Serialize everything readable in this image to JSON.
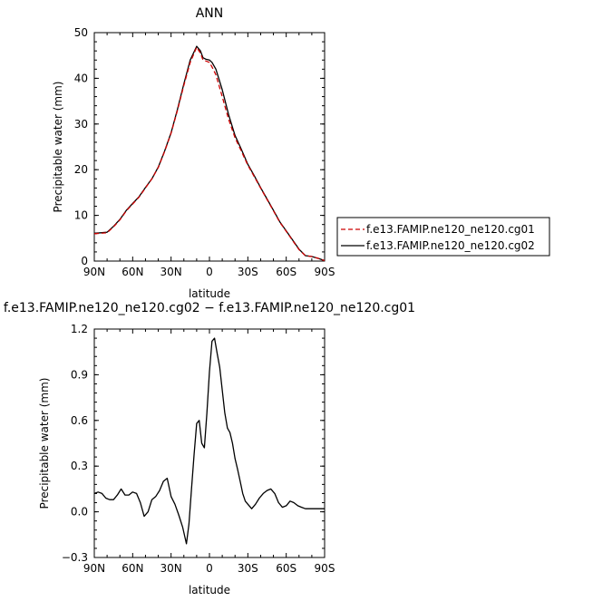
{
  "chart_data": [
    {
      "type": "line",
      "title": "ANN",
      "xlabel": "latitude",
      "ylabel": "Precipitable water (mm)",
      "xlim": [
        90,
        -90
      ],
      "ylim": [
        0,
        50
      ],
      "x_ticks": [
        90,
        60,
        30,
        0,
        -30,
        -60,
        -90
      ],
      "x_tick_labels": [
        "90N",
        "60N",
        "30N",
        "0",
        "30S",
        "60S",
        "90S"
      ],
      "y_ticks": [
        0,
        10,
        20,
        30,
        40,
        50
      ],
      "y_tick_labels": [
        "0",
        "10",
        "20",
        "30",
        "40",
        "50"
      ],
      "legend_position": "right",
      "series": [
        {
          "name": "f.e13.FAMIP.ne120_ne120.cg01",
          "color": "#cc0000",
          "dash": "dashed",
          "x": [
            90,
            85,
            80,
            75,
            70,
            65,
            60,
            55,
            50,
            45,
            40,
            35,
            30,
            25,
            20,
            15,
            10,
            7,
            5,
            3,
            0,
            -2,
            -5,
            -10,
            -15,
            -20,
            -25,
            -30,
            -35,
            -40,
            -45,
            -50,
            -55,
            -60,
            -65,
            -70,
            -75,
            -80,
            -85,
            -90
          ],
          "y": [
            6.0,
            6.1,
            6.2,
            7.5,
            9.0,
            11.0,
            12.5,
            14.0,
            16.0,
            18.0,
            20.5,
            24.0,
            28.0,
            33.0,
            38.5,
            43.5,
            46.8,
            45.5,
            44.0,
            43.8,
            43.5,
            42.5,
            40.8,
            36.0,
            31.0,
            27.0,
            24.0,
            21.0,
            18.5,
            16.0,
            13.5,
            11.0,
            8.5,
            6.5,
            4.5,
            2.5,
            1.2,
            1.0,
            0.6,
            0.1
          ]
        },
        {
          "name": "f.e13.FAMIP.ne120_ne120.cg02",
          "color": "#000000",
          "dash": "solid",
          "x": [
            90,
            85,
            80,
            75,
            70,
            65,
            60,
            55,
            50,
            45,
            40,
            35,
            30,
            25,
            20,
            15,
            10,
            7,
            5,
            3,
            0,
            -2,
            -5,
            -10,
            -15,
            -20,
            -25,
            -30,
            -35,
            -40,
            -45,
            -50,
            -55,
            -60,
            -65,
            -70,
            -75,
            -80,
            -85,
            -90
          ],
          "y": [
            6.1,
            6.2,
            6.3,
            7.6,
            9.1,
            11.1,
            12.6,
            14.1,
            16.1,
            18.0,
            20.6,
            24.1,
            28.1,
            33.2,
            38.8,
            44.0,
            47.0,
            46.0,
            44.5,
            44.2,
            44.0,
            43.5,
            42.0,
            37.5,
            32.0,
            27.5,
            24.4,
            21.2,
            18.7,
            16.1,
            13.6,
            11.1,
            8.6,
            6.6,
            4.6,
            2.6,
            1.2,
            1.0,
            0.6,
            0.1
          ]
        }
      ]
    },
    {
      "type": "line",
      "title": "f.e13.FAMIP.ne120_ne120.cg02 − f.e13.FAMIP.ne120_ne120.cg01",
      "xlabel": "latitude",
      "ylabel": "Precipitable water (mm)",
      "xlim": [
        90,
        -90
      ],
      "ylim": [
        -0.3,
        1.2
      ],
      "x_ticks": [
        90,
        60,
        30,
        0,
        -30,
        -60,
        -90
      ],
      "x_tick_labels": [
        "90N",
        "60N",
        "30N",
        "0",
        "30S",
        "60S",
        "90S"
      ],
      "y_ticks": [
        -0.3,
        0.0,
        0.3,
        0.6,
        0.9,
        1.2
      ],
      "y_tick_labels": [
        "−0.3",
        "0.0",
        "0.3",
        "0.6",
        "0.9",
        "1.2"
      ],
      "series": [
        {
          "color": "#000000",
          "x": [
            90,
            87,
            84,
            81,
            78,
            75,
            72,
            69,
            66,
            63,
            60,
            57,
            54,
            51,
            48,
            45,
            42,
            39,
            36,
            33,
            30,
            27,
            24,
            21,
            18,
            16,
            14,
            12,
            10,
            8,
            6,
            4,
            2,
            0,
            -2,
            -4,
            -6,
            -8,
            -10,
            -12,
            -14,
            -16,
            -18,
            -20,
            -22,
            -24,
            -26,
            -28,
            -30,
            -33,
            -36,
            -39,
            -42,
            -45,
            -48,
            -51,
            -54,
            -57,
            -60,
            -63,
            -66,
            -69,
            -72,
            -75,
            -78,
            -81,
            -84,
            -87,
            -90
          ],
          "y": [
            0.12,
            0.13,
            0.12,
            0.09,
            0.08,
            0.08,
            0.11,
            0.15,
            0.11,
            0.11,
            0.13,
            0.12,
            0.06,
            -0.03,
            0.0,
            0.08,
            0.1,
            0.14,
            0.2,
            0.22,
            0.1,
            0.05,
            -0.02,
            -0.1,
            -0.21,
            -0.08,
            0.15,
            0.38,
            0.58,
            0.6,
            0.45,
            0.42,
            0.65,
            0.92,
            1.12,
            1.14,
            1.04,
            0.95,
            0.8,
            0.65,
            0.55,
            0.52,
            0.45,
            0.35,
            0.28,
            0.2,
            0.12,
            0.07,
            0.05,
            0.02,
            0.05,
            0.09,
            0.12,
            0.14,
            0.15,
            0.12,
            0.06,
            0.03,
            0.04,
            0.07,
            0.06,
            0.04,
            0.03,
            0.02,
            0.02,
            0.02,
            0.02,
            0.02,
            0.02
          ]
        }
      ]
    }
  ]
}
